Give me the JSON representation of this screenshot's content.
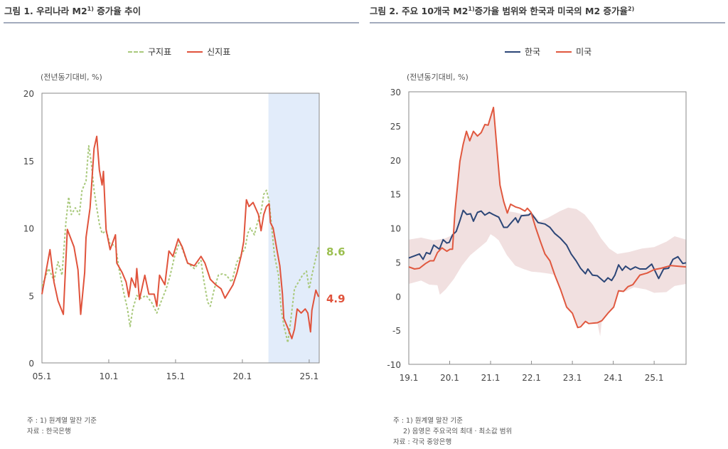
{
  "chart_data": [
    {
      "type": "line",
      "title": "그림 1. 우리나라 M2 증가율 추이",
      "title_main": "그림 1. 우리나라 M2",
      "title_sup": "1)",
      "title_tail": " 증가율 추이",
      "unit_label": "(전년동기대비, %)",
      "xlabel": "",
      "ylabel": "(전년동기대비, %)",
      "xlim": [
        2005.0,
        2025.75
      ],
      "ylim": [
        0,
        20
      ],
      "yticks": [
        "0",
        "5",
        "10",
        "15",
        "20"
      ],
      "xticks": [
        {
          "x": 2005,
          "label": "05.1"
        },
        {
          "x": 2010,
          "label": "10.1"
        },
        {
          "x": 2015,
          "label": "15.1"
        },
        {
          "x": 2020,
          "label": "20.1"
        },
        {
          "x": 2025,
          "label": "25.1"
        }
      ],
      "shaded_range": [
        2021.95,
        2025.75
      ],
      "shade_color": "#e2ecfa",
      "legend_position": "top-center",
      "series": [
        {
          "name": "구지표",
          "style": "dashed",
          "color": "#a9c97c",
          "x": [
            2005.0,
            2005.5,
            2005.9,
            2006.2,
            2006.5,
            2006.8,
            2007.0,
            2007.2,
            2007.5,
            2007.8,
            2008.0,
            2008.3,
            2008.5,
            2008.7,
            2008.9,
            2009.1,
            2009.3,
            2009.5,
            2009.8,
            2010.1,
            2010.5,
            2010.8,
            2011.1,
            2011.4,
            2011.6,
            2011.8,
            2012.1,
            2012.4,
            2012.8,
            2013.2,
            2013.6,
            2013.9,
            2014.3,
            2014.6,
            2014.9,
            2015.3,
            2015.9,
            2016.4,
            2016.9,
            2017.1,
            2017.4,
            2017.6,
            2017.9,
            2018.2,
            2018.5,
            2018.8,
            2019.2,
            2019.6,
            2019.9,
            2020.2,
            2020.4,
            2020.6,
            2020.9,
            2021.1,
            2021.4,
            2021.6,
            2021.8,
            2022.0,
            2022.2,
            2022.4,
            2022.7,
            2022.9,
            2023.1,
            2023.4,
            2023.6,
            2023.9,
            2024.2,
            2024.5,
            2024.8,
            2025.0,
            2025.2,
            2025.5,
            2025.7
          ],
          "values": [
            5.7,
            7.0,
            6.1,
            7.5,
            6.5,
            10.5,
            12.3,
            11.0,
            11.5,
            11.0,
            12.8,
            13.5,
            16.1,
            14.8,
            12.8,
            11.5,
            10.3,
            9.6,
            9.8,
            8.8,
            8.7,
            6.8,
            5.3,
            4.0,
            2.7,
            4.0,
            5.0,
            4.8,
            5.0,
            4.5,
            3.7,
            4.5,
            5.5,
            6.5,
            7.8,
            9.0,
            7.4,
            7.0,
            7.6,
            6.2,
            4.5,
            4.2,
            5.5,
            6.5,
            6.6,
            6.5,
            6.0,
            7.5,
            8.0,
            8.5,
            9.6,
            10.0,
            9.5,
            10.3,
            11.2,
            12.5,
            12.8,
            12.0,
            10.0,
            8.0,
            6.5,
            4.0,
            2.8,
            1.5,
            3.0,
            5.5,
            6.0,
            6.5,
            6.8,
            5.5,
            6.5,
            7.8,
            8.6
          ]
        },
        {
          "name": "신지표",
          "style": "solid",
          "color": "#e0533c",
          "x": [
            2005.0,
            2005.6,
            2005.9,
            2006.2,
            2006.6,
            2006.9,
            2007.4,
            2007.7,
            2007.9,
            2008.2,
            2008.3,
            2008.6,
            2008.9,
            2009.1,
            2009.3,
            2009.5,
            2009.6,
            2009.8,
            2010.1,
            2010.5,
            2010.6,
            2011.0,
            2011.3,
            2011.5,
            2011.7,
            2012.0,
            2012.1,
            2012.3,
            2012.7,
            2013.0,
            2013.4,
            2013.6,
            2013.8,
            2014.2,
            2014.5,
            2014.8,
            2015.2,
            2015.5,
            2015.9,
            2016.4,
            2016.9,
            2017.2,
            2017.6,
            2018.0,
            2018.4,
            2018.7,
            2019.3,
            2019.6,
            2019.9,
            2020.1,
            2020.3,
            2020.5,
            2020.8,
            2021.2,
            2021.4,
            2021.6,
            2021.8,
            2022.0,
            2022.1,
            2022.3,
            2022.6,
            2022.8,
            2023.0,
            2023.1,
            2023.4,
            2023.7,
            2023.9,
            2024.1,
            2024.4,
            2024.7,
            2024.9,
            2025.1,
            2025.2,
            2025.5,
            2025.7
          ],
          "values": [
            5.1,
            8.4,
            6.0,
            4.6,
            3.6,
            9.9,
            8.6,
            6.9,
            3.6,
            6.7,
            9.3,
            11.5,
            15.9,
            16.8,
            14.3,
            13.2,
            14.2,
            9.9,
            8.4,
            9.5,
            7.4,
            6.7,
            6.0,
            4.9,
            6.3,
            5.6,
            7.0,
            4.7,
            6.5,
            5.1,
            5.1,
            4.2,
            6.5,
            5.8,
            8.3,
            7.9,
            9.2,
            8.6,
            7.4,
            7.2,
            7.9,
            7.4,
            6.2,
            5.8,
            5.5,
            4.8,
            5.8,
            6.7,
            7.9,
            9.0,
            12.1,
            11.6,
            11.9,
            11.0,
            9.8,
            11.0,
            11.6,
            11.8,
            10.4,
            10.0,
            8.3,
            7.2,
            5.1,
            3.3,
            2.6,
            1.8,
            2.5,
            4.0,
            3.7,
            4.0,
            3.7,
            2.3,
            3.9,
            5.4,
            4.9
          ]
        }
      ],
      "annotations": [
        {
          "label": "8.6",
          "series": "구지표"
        },
        {
          "label": "4.9",
          "series": "신지표"
        }
      ],
      "footnotes": [
        "주 : 1) 원계열 말잔 기준",
        "자료 : 한국은행"
      ]
    },
    {
      "type": "line",
      "title": "그림 2. 주요 10개국 M2 증가율 범위와 한국과 미국의 M2 증가율",
      "title_main": "그림 2. 주요 10개국 M2",
      "title_sup": "1)",
      "title_tail": "증가율 범위와 한국과 미국의 M2 증가율",
      "title_sup2": "2)",
      "unit_label": "(전년동기대비, %)",
      "xlabel": "",
      "ylabel": "(전년동기대비, %)",
      "xlim": [
        2019.0,
        2025.78
      ],
      "ylim": [
        -10,
        30
      ],
      "yticks": [
        "-10",
        "-5",
        "0",
        "5",
        "10",
        "15",
        "20",
        "25",
        "30"
      ],
      "xticks": [
        {
          "x": 2019,
          "label": "19.1"
        },
        {
          "x": 2020,
          "label": "20.1"
        },
        {
          "x": 2021,
          "label": "21.1"
        },
        {
          "x": 2022,
          "label": "22.1"
        },
        {
          "x": 2023,
          "label": "23.1"
        },
        {
          "x": 2024,
          "label": "24.1"
        },
        {
          "x": 2025,
          "label": "25.1"
        }
      ],
      "legend_position": "top-center",
      "band": {
        "name": "주요국 최대·최소 범위",
        "color": "#f1e0e0",
        "x_max": [
          2019.0,
          2019.3,
          2019.6,
          2019.9,
          2020.07,
          2020.13,
          2020.25,
          2020.33,
          2020.41,
          2020.49,
          2020.58,
          2020.68,
          2020.77,
          2020.86,
          2020.94,
          2021.07,
          2021.23,
          2021.32,
          2021.4,
          2021.6,
          2021.8,
          2022.0,
          2022.2,
          2022.4,
          2022.7,
          2022.9,
          2023.1,
          2023.3,
          2023.5,
          2023.7,
          2023.9,
          2024.1,
          2024.4,
          2024.7,
          2025.0,
          2025.3,
          2025.5,
          2025.78
        ],
        "max": [
          8.3,
          8.6,
          8.2,
          8.5,
          9.0,
          12.5,
          19.8,
          22.3,
          24.2,
          22.8,
          24.2,
          23.5,
          24.0,
          25.2,
          25.1,
          27.7,
          16.3,
          13.9,
          12.5,
          12.3,
          12.0,
          12.3,
          11.0,
          11.5,
          12.5,
          13.0,
          12.8,
          12.0,
          10.5,
          8.5,
          7.0,
          6.2,
          6.5,
          7.0,
          7.2,
          8.0,
          8.8,
          8.3
        ],
        "x_min": [
          2019.0,
          2019.3,
          2019.5,
          2019.7,
          2019.76,
          2019.9,
          2020.1,
          2020.3,
          2020.5,
          2020.7,
          2020.9,
          2021.0,
          2021.1,
          2021.2,
          2021.4,
          2021.6,
          2021.8,
          2022.0,
          2022.2,
          2022.45,
          2022.57,
          2022.71,
          2022.86,
          2023.0,
          2023.13,
          2023.32,
          2023.61,
          2023.68,
          2023.72,
          2023.87,
          2024.01,
          2024.13,
          2024.3,
          2024.5,
          2024.8,
          2025.0,
          2025.3,
          2025.5,
          2025.78
        ],
        "min": [
          1.8,
          2.3,
          1.7,
          1.6,
          0.2,
          1.0,
          2.5,
          4.5,
          6.0,
          7.0,
          8.0,
          9.1,
          8.7,
          8.2,
          6.0,
          4.5,
          4.0,
          3.6,
          3.5,
          3.3,
          3.1,
          1.0,
          -1.6,
          -2.5,
          -4.6,
          -3.7,
          -3.9,
          -5.9,
          -3.6,
          -2.5,
          -1.6,
          0.6,
          0.7,
          1.3,
          1.0,
          0.5,
          0.6,
          1.5,
          1.8
        ]
      },
      "series": [
        {
          "name": "한국",
          "color": "#2c4677",
          "x": [
            2019.0,
            2019.26,
            2019.35,
            2019.43,
            2019.52,
            2019.61,
            2019.75,
            2019.84,
            2019.93,
            2019.99,
            2020.07,
            2020.16,
            2020.25,
            2020.33,
            2020.42,
            2020.51,
            2020.58,
            2020.68,
            2020.77,
            2020.86,
            2020.97,
            2021.06,
            2021.2,
            2021.32,
            2021.41,
            2021.52,
            2021.61,
            2021.67,
            2021.75,
            2021.93,
            2021.99,
            2022.16,
            2022.33,
            2022.45,
            2022.57,
            2022.71,
            2022.86,
            2022.97,
            2023.09,
            2023.2,
            2023.32,
            2023.38,
            2023.49,
            2023.61,
            2023.78,
            2023.87,
            2023.96,
            2024.04,
            2024.13,
            2024.22,
            2024.3,
            2024.42,
            2024.54,
            2024.65,
            2024.8,
            2024.94,
            2025.11,
            2025.23,
            2025.35,
            2025.46,
            2025.58,
            2025.7,
            2025.78
          ],
          "values": [
            5.6,
            6.2,
            5.4,
            6.4,
            6.2,
            7.5,
            6.9,
            8.3,
            7.8,
            7.9,
            9.0,
            9.5,
            11.1,
            12.6,
            12.0,
            12.1,
            11.0,
            12.3,
            12.5,
            11.9,
            12.3,
            12.0,
            11.6,
            10.1,
            10.1,
            10.9,
            11.5,
            10.8,
            11.8,
            11.9,
            12.2,
            10.8,
            10.6,
            10.1,
            9.2,
            8.5,
            7.5,
            6.2,
            5.2,
            4.1,
            3.3,
            4.0,
            3.1,
            3.0,
            2.1,
            2.7,
            2.3,
            3.1,
            4.6,
            3.8,
            4.4,
            3.9,
            4.3,
            4.0,
            4.0,
            4.7,
            2.6,
            4.0,
            4.1,
            5.4,
            5.8,
            4.8,
            4.9
          ]
        },
        {
          "name": "미국",
          "color": "#e0583f",
          "x": [
            2019.0,
            2019.14,
            2019.26,
            2019.41,
            2019.52,
            2019.61,
            2019.7,
            2019.81,
            2019.93,
            2020.01,
            2020.07,
            2020.13,
            2020.25,
            2020.33,
            2020.41,
            2020.49,
            2020.58,
            2020.68,
            2020.77,
            2020.86,
            2020.94,
            2021.07,
            2021.23,
            2021.32,
            2021.41,
            2021.49,
            2021.61,
            2021.72,
            2021.84,
            2021.9,
            2021.99,
            2022.1,
            2022.22,
            2022.33,
            2022.45,
            2022.57,
            2022.71,
            2022.86,
            2023.0,
            2023.13,
            2023.2,
            2023.32,
            2023.4,
            2023.61,
            2023.72,
            2023.87,
            2024.01,
            2024.13,
            2024.25,
            2024.36,
            2024.48,
            2024.65,
            2024.83,
            2025.0,
            2025.17,
            2025.41,
            2025.78
          ],
          "values": [
            4.3,
            4.0,
            4.1,
            4.8,
            5.2,
            5.2,
            6.4,
            7.1,
            6.6,
            6.9,
            6.9,
            12.5,
            19.8,
            22.3,
            24.2,
            22.8,
            24.2,
            23.5,
            24.0,
            25.2,
            25.1,
            27.7,
            16.3,
            13.9,
            12.2,
            13.5,
            13.1,
            12.9,
            12.5,
            12.9,
            12.3,
            10.1,
            8.0,
            6.2,
            5.2,
            3.1,
            1.0,
            -1.6,
            -2.5,
            -4.6,
            -4.5,
            -3.7,
            -4.0,
            -3.9,
            -3.6,
            -2.5,
            -1.6,
            0.8,
            0.7,
            1.4,
            1.7,
            3.1,
            3.4,
            3.9,
            4.1,
            4.5,
            4.3
          ]
        }
      ],
      "footnotes": [
        "주 : 1) 원계열 말잔 기준",
        "2) 음영은 주요국의 최대 · 최소값 범위",
        "자료 : 각국 중앙은행"
      ]
    }
  ]
}
